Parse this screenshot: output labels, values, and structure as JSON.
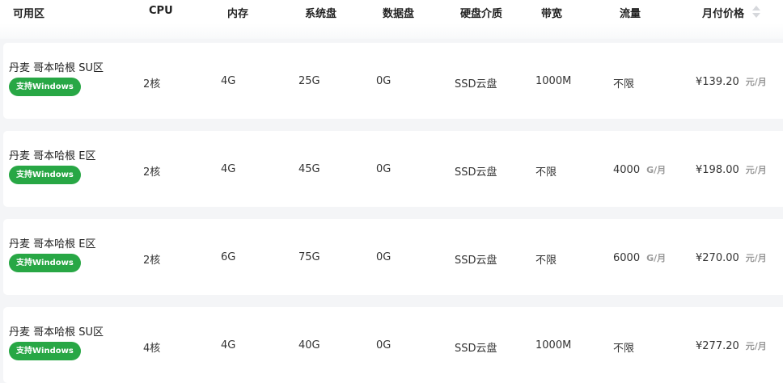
{
  "header": {
    "columns": [
      "可用区",
      "CPU",
      "内存",
      "系统盘",
      "数据盘",
      "硬盘介质",
      "带宽",
      "流量",
      "月付价格"
    ],
    "sort_icon": "sort-icon"
  },
  "colors": {
    "badge": "#28a745",
    "background": "#f4f5f7"
  },
  "rows": [
    {
      "zone": "丹麦 哥本哈根 SU区",
      "badge": "支持Windows",
      "cpu": "2核",
      "memory": "4G",
      "system_disk": "25G",
      "data_disk": "0G",
      "disk_type": "SSD云盘",
      "bandwidth": "1000M",
      "traffic": "不限",
      "traffic_unit": "",
      "price": "¥139.20",
      "price_unit": "元/月"
    },
    {
      "zone": "丹麦 哥本哈根 E区",
      "badge": "支持Windows",
      "cpu": "2核",
      "memory": "4G",
      "system_disk": "45G",
      "data_disk": "0G",
      "disk_type": "SSD云盘",
      "bandwidth": "不限",
      "traffic": "4000",
      "traffic_unit": "G/月",
      "price": "¥198.00",
      "price_unit": "元/月"
    },
    {
      "zone": "丹麦 哥本哈根 E区",
      "badge": "支持Windows",
      "cpu": "2核",
      "memory": "6G",
      "system_disk": "75G",
      "data_disk": "0G",
      "disk_type": "SSD云盘",
      "bandwidth": "不限",
      "traffic": "6000",
      "traffic_unit": "G/月",
      "price": "¥270.00",
      "price_unit": "元/月"
    },
    {
      "zone": "丹麦 哥本哈根 SU区",
      "badge": "支持Windows",
      "cpu": "4核",
      "memory": "4G",
      "system_disk": "40G",
      "data_disk": "0G",
      "disk_type": "SSD云盘",
      "bandwidth": "1000M",
      "traffic": "不限",
      "traffic_unit": "",
      "price": "¥277.20",
      "price_unit": "元/月"
    }
  ]
}
